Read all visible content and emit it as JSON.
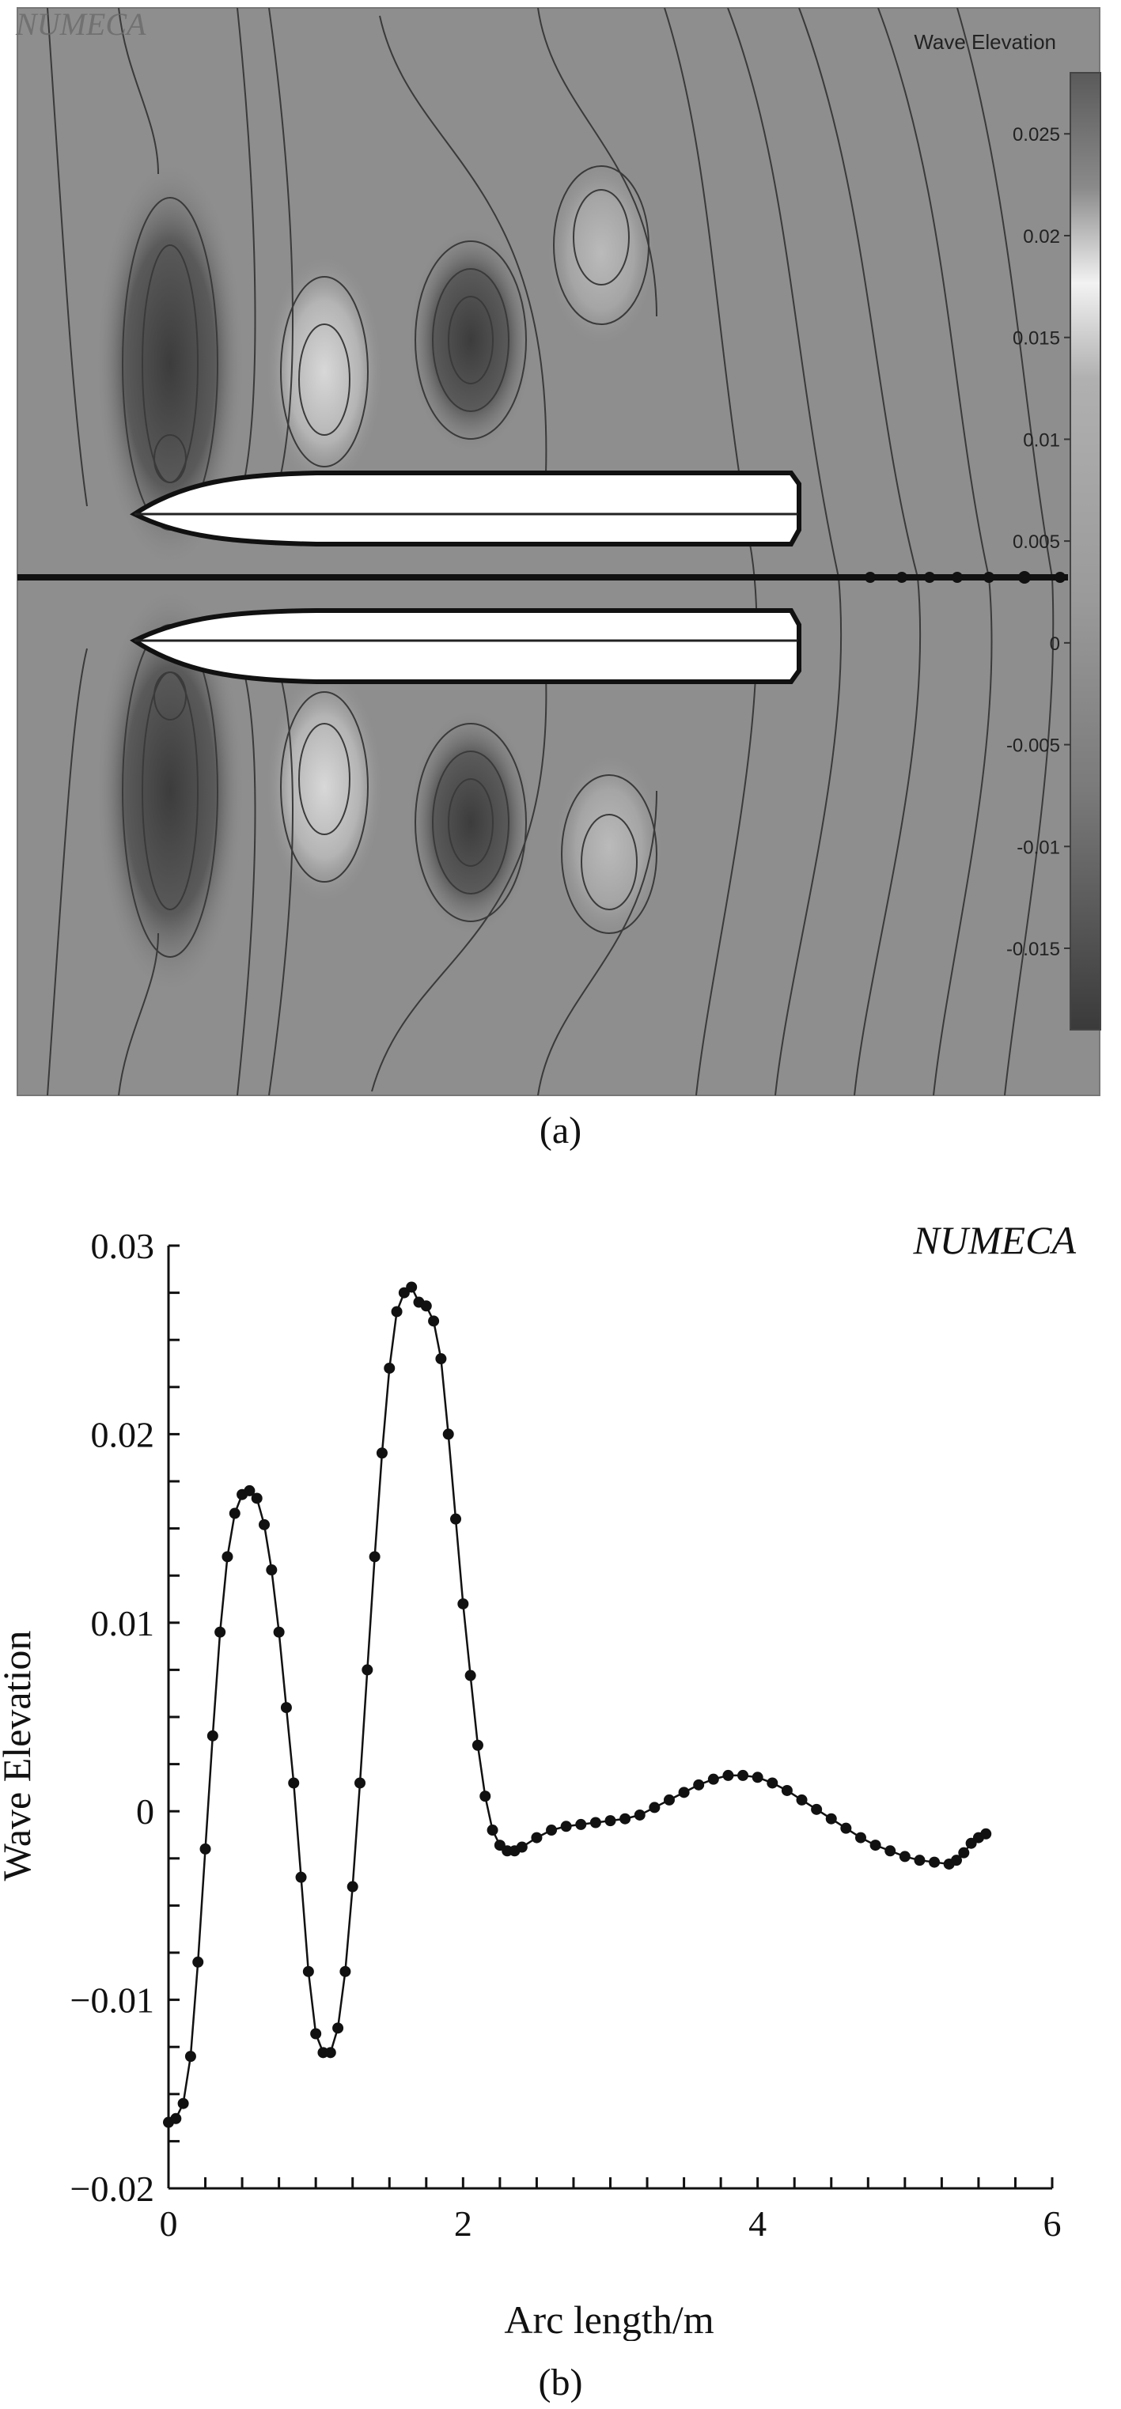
{
  "figure": {
    "caption_a": "(a)",
    "caption_b": "(b)"
  },
  "contour": {
    "watermark": "NUMECA",
    "legend_title": "Wave Elevation",
    "legend_ticks": [
      "0.025",
      "0.02",
      "0.015",
      "0.01",
      "0.005",
      "0",
      "-0.005",
      "-0.01",
      "-0.015"
    ],
    "legend_range": [
      -0.019,
      0.028
    ]
  },
  "chart_data": {
    "type": "scatter",
    "title": "NUMECA",
    "xlabel": "Arc length/m",
    "ylabel": "Wave Elevation",
    "xlim": [
      0,
      6
    ],
    "ylim": [
      -0.02,
      0.03
    ],
    "xticks": [
      "0",
      "2",
      "4",
      "6"
    ],
    "yticks": [
      "0.03",
      "0.02",
      "0.01",
      "0",
      "−0.01",
      "−0.02"
    ],
    "series": [
      {
        "x": [
          0.0,
          0.05,
          0.1,
          0.15,
          0.2,
          0.25,
          0.3,
          0.35,
          0.4,
          0.45,
          0.5,
          0.55,
          0.6,
          0.65,
          0.7,
          0.75,
          0.8,
          0.85,
          0.9,
          0.95,
          1.0,
          1.05,
          1.1,
          1.15,
          1.2,
          1.25,
          1.3,
          1.35,
          1.4,
          1.45,
          1.5,
          1.55,
          1.6,
          1.65,
          1.7,
          1.75,
          1.8,
          1.85,
          1.9,
          1.95,
          2.0,
          2.05,
          2.1,
          2.15,
          2.2,
          2.25,
          2.3,
          2.35,
          2.4,
          2.5,
          2.6,
          2.7,
          2.8,
          2.9,
          3.0,
          3.1,
          3.2,
          3.3,
          3.4,
          3.5,
          3.6,
          3.7,
          3.8,
          3.9,
          4.0,
          4.1,
          4.2,
          4.3,
          4.4,
          4.5,
          4.6,
          4.7,
          4.8,
          4.9,
          5.0,
          5.1,
          5.2,
          5.3,
          5.35,
          5.4,
          5.45,
          5.5,
          5.55
        ],
        "y": [
          -0.0165,
          -0.0163,
          -0.0155,
          -0.013,
          -0.008,
          -0.002,
          0.004,
          0.0095,
          0.0135,
          0.0158,
          0.0168,
          0.017,
          0.0166,
          0.0152,
          0.0128,
          0.0095,
          0.0055,
          0.0015,
          -0.0035,
          -0.0085,
          -0.0118,
          -0.0128,
          -0.0128,
          -0.0115,
          -0.0085,
          -0.004,
          0.0015,
          0.0075,
          0.0135,
          0.019,
          0.0235,
          0.0265,
          0.0275,
          0.0278,
          0.027,
          0.0268,
          0.026,
          0.024,
          0.02,
          0.0155,
          0.011,
          0.0072,
          0.0035,
          0.0008,
          -0.001,
          -0.0018,
          -0.0021,
          -0.0021,
          -0.0019,
          -0.0014,
          -0.001,
          -0.0008,
          -0.0007,
          -0.0006,
          -0.0005,
          -0.0004,
          -0.0002,
          0.0002,
          0.0006,
          0.001,
          0.0014,
          0.0017,
          0.0019,
          0.0019,
          0.0018,
          0.0015,
          0.0011,
          0.0006,
          0.0001,
          -0.0004,
          -0.0009,
          -0.0014,
          -0.0018,
          -0.0021,
          -0.0024,
          -0.0026,
          -0.0027,
          -0.0028,
          -0.0026,
          -0.0022,
          -0.0017,
          -0.0014,
          -0.0012
        ]
      }
    ]
  }
}
